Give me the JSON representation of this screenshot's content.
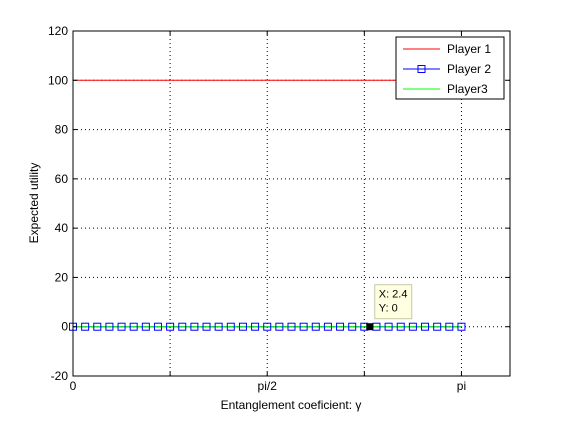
{
  "chart_data": {
    "type": "line",
    "title": "",
    "xlabel": "Entanglement coeficient: γ",
    "ylabel": "Expected utility",
    "xlim": [
      0,
      3.5343
    ],
    "ylim": [
      -20,
      120
    ],
    "grid": true,
    "grid_style": "dotted",
    "xticks": [
      {
        "value": 0,
        "label": "0"
      },
      {
        "value": 0.7854,
        "label": ""
      },
      {
        "value": 1.5708,
        "label": "pi/2"
      },
      {
        "value": 2.3562,
        "label": ""
      },
      {
        "value": 3.1416,
        "label": "pi"
      }
    ],
    "yticks": [
      {
        "value": -20,
        "label": "-20"
      },
      {
        "value": 0,
        "label": "0"
      },
      {
        "value": 20,
        "label": "20"
      },
      {
        "value": 40,
        "label": "40"
      },
      {
        "value": 60,
        "label": "60"
      },
      {
        "value": 80,
        "label": "80"
      },
      {
        "value": 100,
        "label": "100"
      },
      {
        "value": 120,
        "label": "120"
      }
    ],
    "x_range": [
      0,
      3.1416
    ],
    "num_points": 33,
    "series": [
      {
        "name": "Player 1",
        "color": "#ff0000",
        "marker": "none",
        "y_constant": 100
      },
      {
        "name": "Player 2",
        "color": "#0000ff",
        "marker": "square",
        "y_constant": 0
      },
      {
        "name": "Player3",
        "color": "#00ff00",
        "marker": "none",
        "y_constant": 0
      }
    ],
    "legend": {
      "location": "top-right",
      "entries": [
        "Player 1",
        "Player 2",
        "Player3"
      ]
    },
    "annotation": {
      "x": 2.4,
      "y": 0,
      "lines": [
        "X: 2.4",
        "Y: 0"
      ]
    }
  }
}
